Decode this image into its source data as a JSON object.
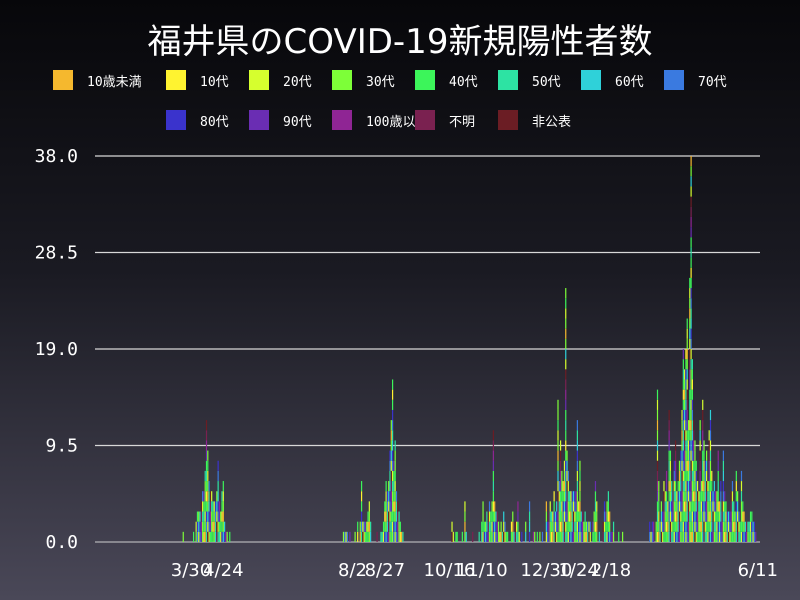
{
  "chart_data": {
    "type": "bar",
    "stacked": true,
    "title": "福井県のCOVID-19新規陽性者数",
    "xlabel": "",
    "ylabel": "",
    "ylim": [
      0,
      38
    ],
    "yticks": [
      "0.0",
      "9.5",
      "19.0",
      "28.5",
      "38.0"
    ],
    "ytick_values": [
      0,
      9.5,
      19,
      28.5,
      38
    ],
    "xticks": [
      "3/30",
      "4/24",
      "8/2",
      "8/27",
      "10/16",
      "11/10",
      "12/30",
      "1/24",
      "2/18",
      "6/11"
    ],
    "xtick_days": [
      0,
      25,
      125,
      150,
      200,
      225,
      275,
      300,
      325,
      438
    ],
    "x_range_days": [
      -50,
      438
    ],
    "grid": true,
    "legend_position": "top",
    "series": [
      {
        "name": "10歳未満",
        "color": "#f5b82e"
      },
      {
        "name": "10代",
        "color": "#fff330"
      },
      {
        "name": "20代",
        "color": "#d6ff2e"
      },
      {
        "name": "30代",
        "color": "#7dff38"
      },
      {
        "name": "40代",
        "color": "#3cf55a"
      },
      {
        "name": "50代",
        "color": "#2de3a3"
      },
      {
        "name": "60代",
        "color": "#2fd1d9"
      },
      {
        "name": "70代",
        "color": "#3a7ae0"
      },
      {
        "name": "80代",
        "color": "#3a33cc"
      },
      {
        "name": "90代",
        "color": "#6a2db3"
      },
      {
        "name": "100歳以上",
        "color": "#8f2594"
      },
      {
        "name": "不明",
        "color": "#7a2150"
      },
      {
        "name": "非公表",
        "color": "#6b1d24"
      }
    ],
    "daily_totals": [
      [
        -6,
        1
      ],
      [
        2,
        1
      ],
      [
        4,
        2
      ],
      [
        5,
        3
      ],
      [
        6,
        3
      ],
      [
        7,
        3
      ],
      [
        8,
        4
      ],
      [
        9,
        5
      ],
      [
        10,
        5
      ],
      [
        11,
        7
      ],
      [
        12,
        12
      ],
      [
        13,
        9
      ],
      [
        14,
        6
      ],
      [
        15,
        5
      ],
      [
        16,
        5
      ],
      [
        17,
        4
      ],
      [
        18,
        4
      ],
      [
        19,
        4
      ],
      [
        20,
        5
      ],
      [
        21,
        8
      ],
      [
        22,
        4
      ],
      [
        23,
        3
      ],
      [
        24,
        5
      ],
      [
        25,
        6
      ],
      [
        26,
        2
      ],
      [
        27,
        1
      ],
      [
        28,
        1
      ],
      [
        30,
        1
      ],
      [
        118,
        1
      ],
      [
        119,
        1
      ],
      [
        120,
        1
      ],
      [
        121,
        1
      ],
      [
        123,
        1
      ],
      [
        127,
        1
      ],
      [
        129,
        2
      ],
      [
        131,
        2
      ],
      [
        132,
        6
      ],
      [
        133,
        2
      ],
      [
        134,
        2
      ],
      [
        135,
        2
      ],
      [
        136,
        2
      ],
      [
        137,
        3
      ],
      [
        138,
        4
      ],
      [
        139,
        2
      ],
      [
        144,
        1
      ],
      [
        147,
        1
      ],
      [
        148,
        1
      ],
      [
        149,
        2
      ],
      [
        150,
        4
      ],
      [
        151,
        6
      ],
      [
        152,
        5
      ],
      [
        153,
        6
      ],
      [
        154,
        9
      ],
      [
        155,
        12
      ],
      [
        156,
        16
      ],
      [
        157,
        8
      ],
      [
        158,
        10
      ],
      [
        159,
        5
      ],
      [
        160,
        4
      ],
      [
        161,
        3
      ],
      [
        162,
        2
      ],
      [
        163,
        1
      ],
      [
        164,
        1
      ],
      [
        202,
        2
      ],
      [
        203,
        1
      ],
      [
        205,
        1
      ],
      [
        206,
        1
      ],
      [
        210,
        1
      ],
      [
        212,
        4
      ],
      [
        213,
        1
      ],
      [
        218,
        1
      ],
      [
        223,
        1
      ],
      [
        225,
        2
      ],
      [
        226,
        4
      ],
      [
        227,
        2
      ],
      [
        228,
        2
      ],
      [
        229,
        3
      ],
      [
        230,
        3
      ],
      [
        231,
        4
      ],
      [
        232,
        3
      ],
      [
        233,
        4
      ],
      [
        234,
        11
      ],
      [
        235,
        4
      ],
      [
        236,
        3
      ],
      [
        237,
        3
      ],
      [
        238,
        2
      ],
      [
        239,
        1
      ],
      [
        240,
        2
      ],
      [
        241,
        1
      ],
      [
        242,
        3
      ],
      [
        243,
        2
      ],
      [
        244,
        1
      ],
      [
        245,
        1
      ],
      [
        248,
        2
      ],
      [
        249,
        3
      ],
      [
        250,
        1
      ],
      [
        251,
        2
      ],
      [
        252,
        2
      ],
      [
        253,
        4
      ],
      [
        254,
        1
      ],
      [
        256,
        1
      ],
      [
        259,
        2
      ],
      [
        262,
        4
      ],
      [
        265,
        1
      ],
      [
        266,
        1
      ],
      [
        268,
        1
      ],
      [
        270,
        1
      ],
      [
        272,
        1
      ],
      [
        275,
        4
      ],
      [
        276,
        2
      ],
      [
        277,
        3
      ],
      [
        278,
        4
      ],
      [
        279,
        3
      ],
      [
        280,
        3
      ],
      [
        281,
        5
      ],
      [
        282,
        3
      ],
      [
        283,
        4
      ],
      [
        284,
        14
      ],
      [
        285,
        6
      ],
      [
        286,
        10
      ],
      [
        287,
        7
      ],
      [
        288,
        6
      ],
      [
        289,
        8
      ],
      [
        290,
        25
      ],
      [
        291,
        9
      ],
      [
        292,
        7
      ],
      [
        293,
        5
      ],
      [
        294,
        5
      ],
      [
        295,
        5
      ],
      [
        296,
        5
      ],
      [
        297,
        5
      ],
      [
        298,
        5
      ],
      [
        299,
        12
      ],
      [
        300,
        4
      ],
      [
        301,
        8
      ],
      [
        302,
        3
      ],
      [
        303,
        3
      ],
      [
        304,
        2
      ],
      [
        305,
        3
      ],
      [
        306,
        2
      ],
      [
        307,
        2
      ],
      [
        308,
        2
      ],
      [
        309,
        2
      ],
      [
        311,
        2
      ],
      [
        312,
        3
      ],
      [
        313,
        6
      ],
      [
        314,
        4
      ],
      [
        316,
        1
      ],
      [
        319,
        2
      ],
      [
        320,
        4
      ],
      [
        321,
        3
      ],
      [
        322,
        4
      ],
      [
        323,
        5
      ],
      [
        324,
        3
      ],
      [
        325,
        1
      ],
      [
        326,
        1
      ],
      [
        327,
        2
      ],
      [
        331,
        1
      ],
      [
        334,
        1
      ],
      [
        355,
        2
      ],
      [
        356,
        1
      ],
      [
        357,
        2
      ],
      [
        358,
        2
      ],
      [
        360,
        2
      ],
      [
        361,
        15
      ],
      [
        362,
        6
      ],
      [
        363,
        2
      ],
      [
        364,
        4
      ],
      [
        365,
        3
      ],
      [
        366,
        6
      ],
      [
        367,
        5
      ],
      [
        368,
        7
      ],
      [
        369,
        4
      ],
      [
        370,
        13
      ],
      [
        371,
        9
      ],
      [
        372,
        6
      ],
      [
        373,
        5
      ],
      [
        374,
        8
      ],
      [
        375,
        10
      ],
      [
        376,
        5
      ],
      [
        377,
        6
      ],
      [
        378,
        8
      ],
      [
        379,
        9
      ],
      [
        380,
        13
      ],
      [
        381,
        19
      ],
      [
        382,
        17
      ],
      [
        383,
        19
      ],
      [
        384,
        22
      ],
      [
        385,
        12
      ],
      [
        386,
        26
      ],
      [
        387,
        38
      ],
      [
        388,
        18
      ],
      [
        389,
        12
      ],
      [
        390,
        10
      ],
      [
        391,
        8
      ],
      [
        392,
        6
      ],
      [
        393,
        5
      ],
      [
        394,
        12
      ],
      [
        395,
        6
      ],
      [
        396,
        14
      ],
      [
        397,
        10
      ],
      [
        398,
        8
      ],
      [
        399,
        9
      ],
      [
        400,
        6
      ],
      [
        401,
        11
      ],
      [
        402,
        13
      ],
      [
        403,
        7
      ],
      [
        404,
        5
      ],
      [
        405,
        6
      ],
      [
        406,
        5
      ],
      [
        407,
        5
      ],
      [
        408,
        9
      ],
      [
        409,
        4
      ],
      [
        410,
        6
      ],
      [
        411,
        4
      ],
      [
        412,
        9
      ],
      [
        413,
        5
      ],
      [
        414,
        4
      ],
      [
        415,
        3
      ],
      [
        416,
        3
      ],
      [
        417,
        3
      ],
      [
        418,
        5
      ],
      [
        419,
        6
      ],
      [
        420,
        4
      ],
      [
        421,
        3
      ],
      [
        422,
        7
      ],
      [
        423,
        5
      ],
      [
        424,
        3
      ],
      [
        425,
        2
      ],
      [
        426,
        7
      ],
      [
        427,
        4
      ],
      [
        428,
        3
      ],
      [
        429,
        2
      ],
      [
        430,
        2
      ],
      [
        431,
        2
      ],
      [
        432,
        2
      ],
      [
        433,
        3
      ],
      [
        434,
        3
      ],
      [
        435,
        2
      ],
      [
        436,
        2
      ],
      [
        437,
        1
      ]
    ]
  }
}
